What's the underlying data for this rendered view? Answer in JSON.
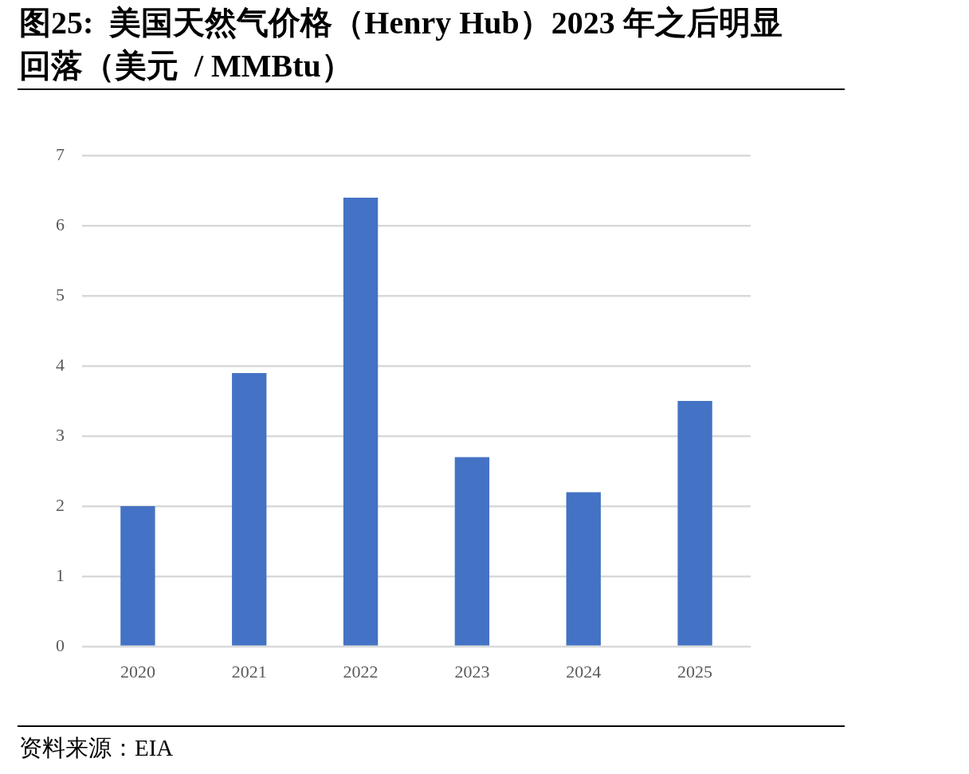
{
  "chart_data": {
    "type": "bar",
    "title": "图25:  美国天然气价格（Henry Hub）2023 年之后明显回落（美元  / MMBtu）",
    "categories": [
      "2020",
      "2021",
      "2022",
      "2023",
      "2024",
      "2025"
    ],
    "values": [
      2.0,
      3.9,
      6.4,
      2.7,
      2.2,
      3.5
    ],
    "color": "#4472c4",
    "ylim": [
      0,
      7
    ],
    "yticks": [
      0,
      1,
      2,
      3,
      4,
      5,
      6,
      7
    ],
    "grid": "y",
    "annotations": [
      "资料来源：EIA"
    ]
  }
}
